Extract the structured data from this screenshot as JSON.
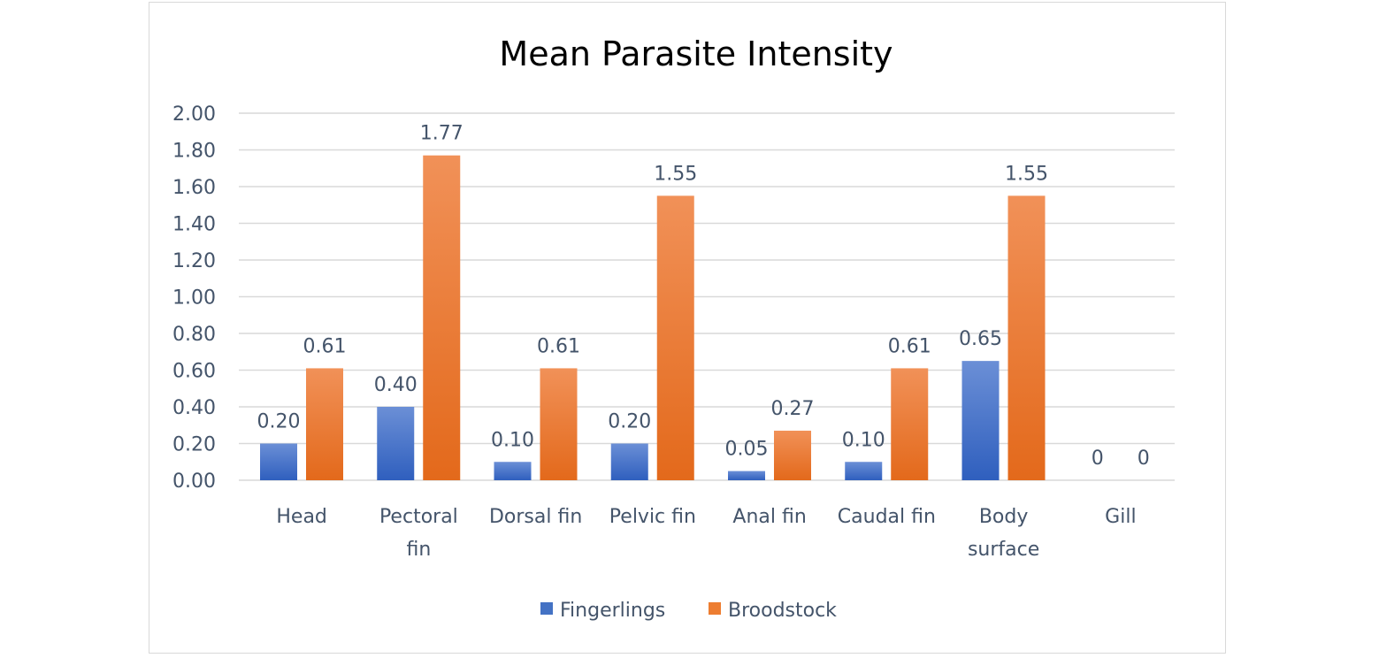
{
  "chart_data": {
    "type": "bar",
    "title": "Mean Parasite Intensity",
    "categories": [
      "Head",
      "Pectoral fin",
      "Dorsal fin",
      "Pelvic fin",
      "Anal fin",
      "Caudal fin",
      "Body surface",
      "Gill"
    ],
    "category_lines": [
      [
        "Head"
      ],
      [
        "Pectoral",
        "fin"
      ],
      [
        "Dorsal fin"
      ],
      [
        "Pelvic fin"
      ],
      [
        "Anal fin"
      ],
      [
        "Caudal fin"
      ],
      [
        "Body",
        "surface"
      ],
      [
        "Gill"
      ]
    ],
    "series": [
      {
        "name": "Fingerlings",
        "values": [
          0.2,
          0.4,
          0.1,
          0.2,
          0.05,
          0.1,
          0.65,
          0
        ],
        "labels": [
          "0.20",
          "0.40",
          "0.10",
          "0.20",
          "0.05",
          "0.10",
          "0.65",
          "0"
        ],
        "color": "#4472c4"
      },
      {
        "name": "Broodstock",
        "values": [
          0.61,
          1.77,
          0.61,
          1.55,
          0.27,
          0.61,
          1.55,
          0
        ],
        "labels": [
          "0.61",
          "1.77",
          "0.61",
          "1.55",
          "0.27",
          "0.61",
          "1.55",
          "0"
        ],
        "color": "#ed7d31"
      }
    ],
    "yticks": [
      "0.00",
      "0.20",
      "0.40",
      "0.60",
      "0.80",
      "1.00",
      "1.20",
      "1.40",
      "1.60",
      "1.80",
      "2.00"
    ],
    "ylim": [
      0,
      2
    ],
    "xlabel": "",
    "ylabel": "",
    "grid": true,
    "legend": "bottom"
  }
}
